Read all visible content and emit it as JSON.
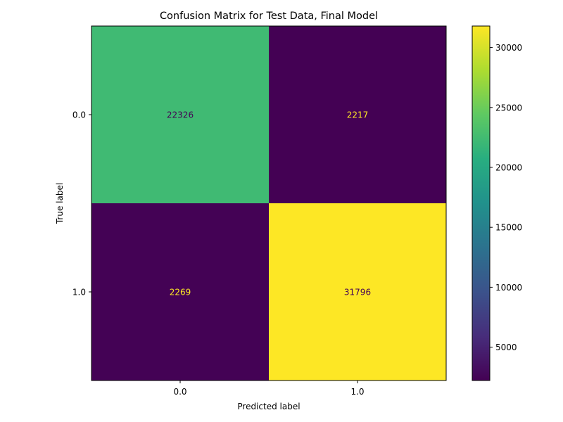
{
  "chart_data": {
    "type": "heatmap",
    "title": "Confusion Matrix for Test Data, Final Model",
    "xlabel": "Predicted label",
    "ylabel": "True label",
    "x_categories": [
      "0.0",
      "1.0"
    ],
    "y_categories": [
      "0.0",
      "1.0"
    ],
    "matrix": [
      [
        22326,
        2217
      ],
      [
        2269,
        31796
      ]
    ],
    "colormap": "viridis",
    "colorbar": {
      "ticks": [
        5000,
        10000,
        15000,
        20000,
        25000,
        30000
      ],
      "tick_labels": [
        "5000",
        "10000",
        "15000",
        "20000",
        "25000",
        "30000"
      ],
      "range": [
        2217,
        31796
      ]
    },
    "grid": false,
    "text_colors": {
      "on_dark": "#fde725",
      "on_light": "#440154"
    }
  }
}
